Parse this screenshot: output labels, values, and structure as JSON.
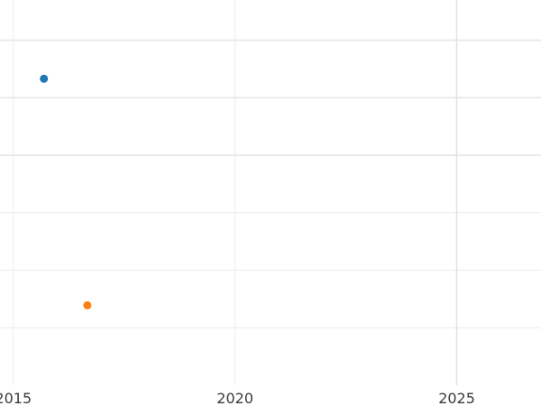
{
  "chart_data": {
    "type": "scatter",
    "title": "",
    "xlabel": "",
    "ylabel": "",
    "xlim": [
      2014.7,
      2026.9
    ],
    "ylim": [
      -1.0,
      5.7
    ],
    "x_ticks": [
      2015,
      2020,
      2025
    ],
    "x_tick_labels": [
      "2015",
      "2020",
      "2025"
    ],
    "y_gridlines": [
      0,
      1,
      2,
      3,
      4,
      5
    ],
    "y_tick_labels_shown": false,
    "grid": true,
    "legend": "none",
    "series": [
      {
        "color": "#1f77b4",
        "points": [
          {
            "x": 2015.69,
            "y": 4.33
          }
        ]
      },
      {
        "color": "#ff7f0e",
        "points": [
          {
            "x": 2016.67,
            "y": 0.39
          }
        ]
      }
    ]
  }
}
